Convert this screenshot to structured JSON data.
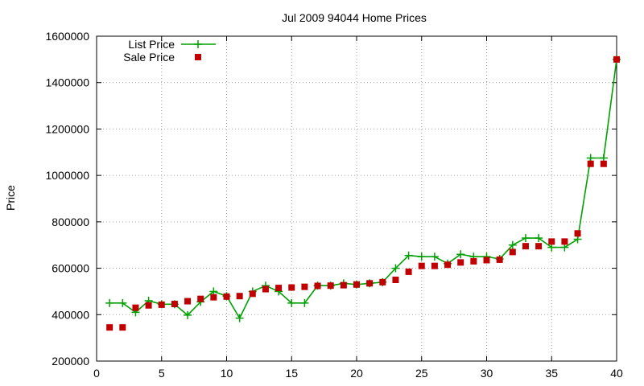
{
  "chart_data": {
    "type": "line",
    "title": "Jul 2009 94044 Home Prices",
    "xlabel": "",
    "ylabel": "Price",
    "xlim": [
      0,
      40
    ],
    "ylim": [
      200000,
      1600000
    ],
    "xticks": [
      0,
      5,
      10,
      15,
      20,
      25,
      30,
      35,
      40
    ],
    "yticks": [
      200000,
      400000,
      600000,
      800000,
      1000000,
      1200000,
      1400000,
      1600000
    ],
    "grid": true,
    "legend_position": "top-left",
    "series": [
      {
        "name": "List Price",
        "style": "line+cross",
        "color": "#00a000",
        "x": [
          1,
          2,
          3,
          4,
          5,
          6,
          7,
          8,
          9,
          10,
          11,
          12,
          13,
          14,
          15,
          16,
          17,
          18,
          19,
          20,
          21,
          22,
          23,
          24,
          25,
          26,
          27,
          28,
          29,
          30,
          31,
          32,
          33,
          34,
          35,
          36,
          37,
          38,
          39,
          40
        ],
        "y": [
          450000,
          450000,
          410000,
          460000,
          445000,
          445000,
          398000,
          455000,
          500000,
          480000,
          385000,
          500000,
          525000,
          500000,
          450000,
          450000,
          525000,
          525000,
          535000,
          530000,
          535000,
          540000,
          600000,
          655000,
          650000,
          650000,
          620000,
          660000,
          650000,
          650000,
          640000,
          700000,
          730000,
          730000,
          690000,
          690000,
          725000,
          1075000,
          1075000,
          1500000
        ]
      },
      {
        "name": "Sale Price",
        "style": "square",
        "color": "#c00000",
        "x": [
          1,
          2,
          3,
          4,
          5,
          6,
          7,
          8,
          9,
          10,
          11,
          12,
          13,
          14,
          15,
          16,
          17,
          18,
          19,
          20,
          21,
          22,
          23,
          24,
          25,
          26,
          27,
          28,
          29,
          30,
          31,
          32,
          33,
          34,
          35,
          36,
          37,
          38,
          39,
          40
        ],
        "y": [
          345000,
          345000,
          430000,
          440000,
          443000,
          446000,
          458000,
          468000,
          475000,
          478000,
          480000,
          490000,
          510000,
          515000,
          517000,
          520000,
          524000,
          525000,
          527000,
          530000,
          535000,
          540000,
          550000,
          585000,
          610000,
          610000,
          615000,
          625000,
          630000,
          635000,
          637000,
          670000,
          695000,
          695000,
          715000,
          715000,
          750000,
          1050000,
          1050000,
          1500000
        ]
      }
    ]
  }
}
